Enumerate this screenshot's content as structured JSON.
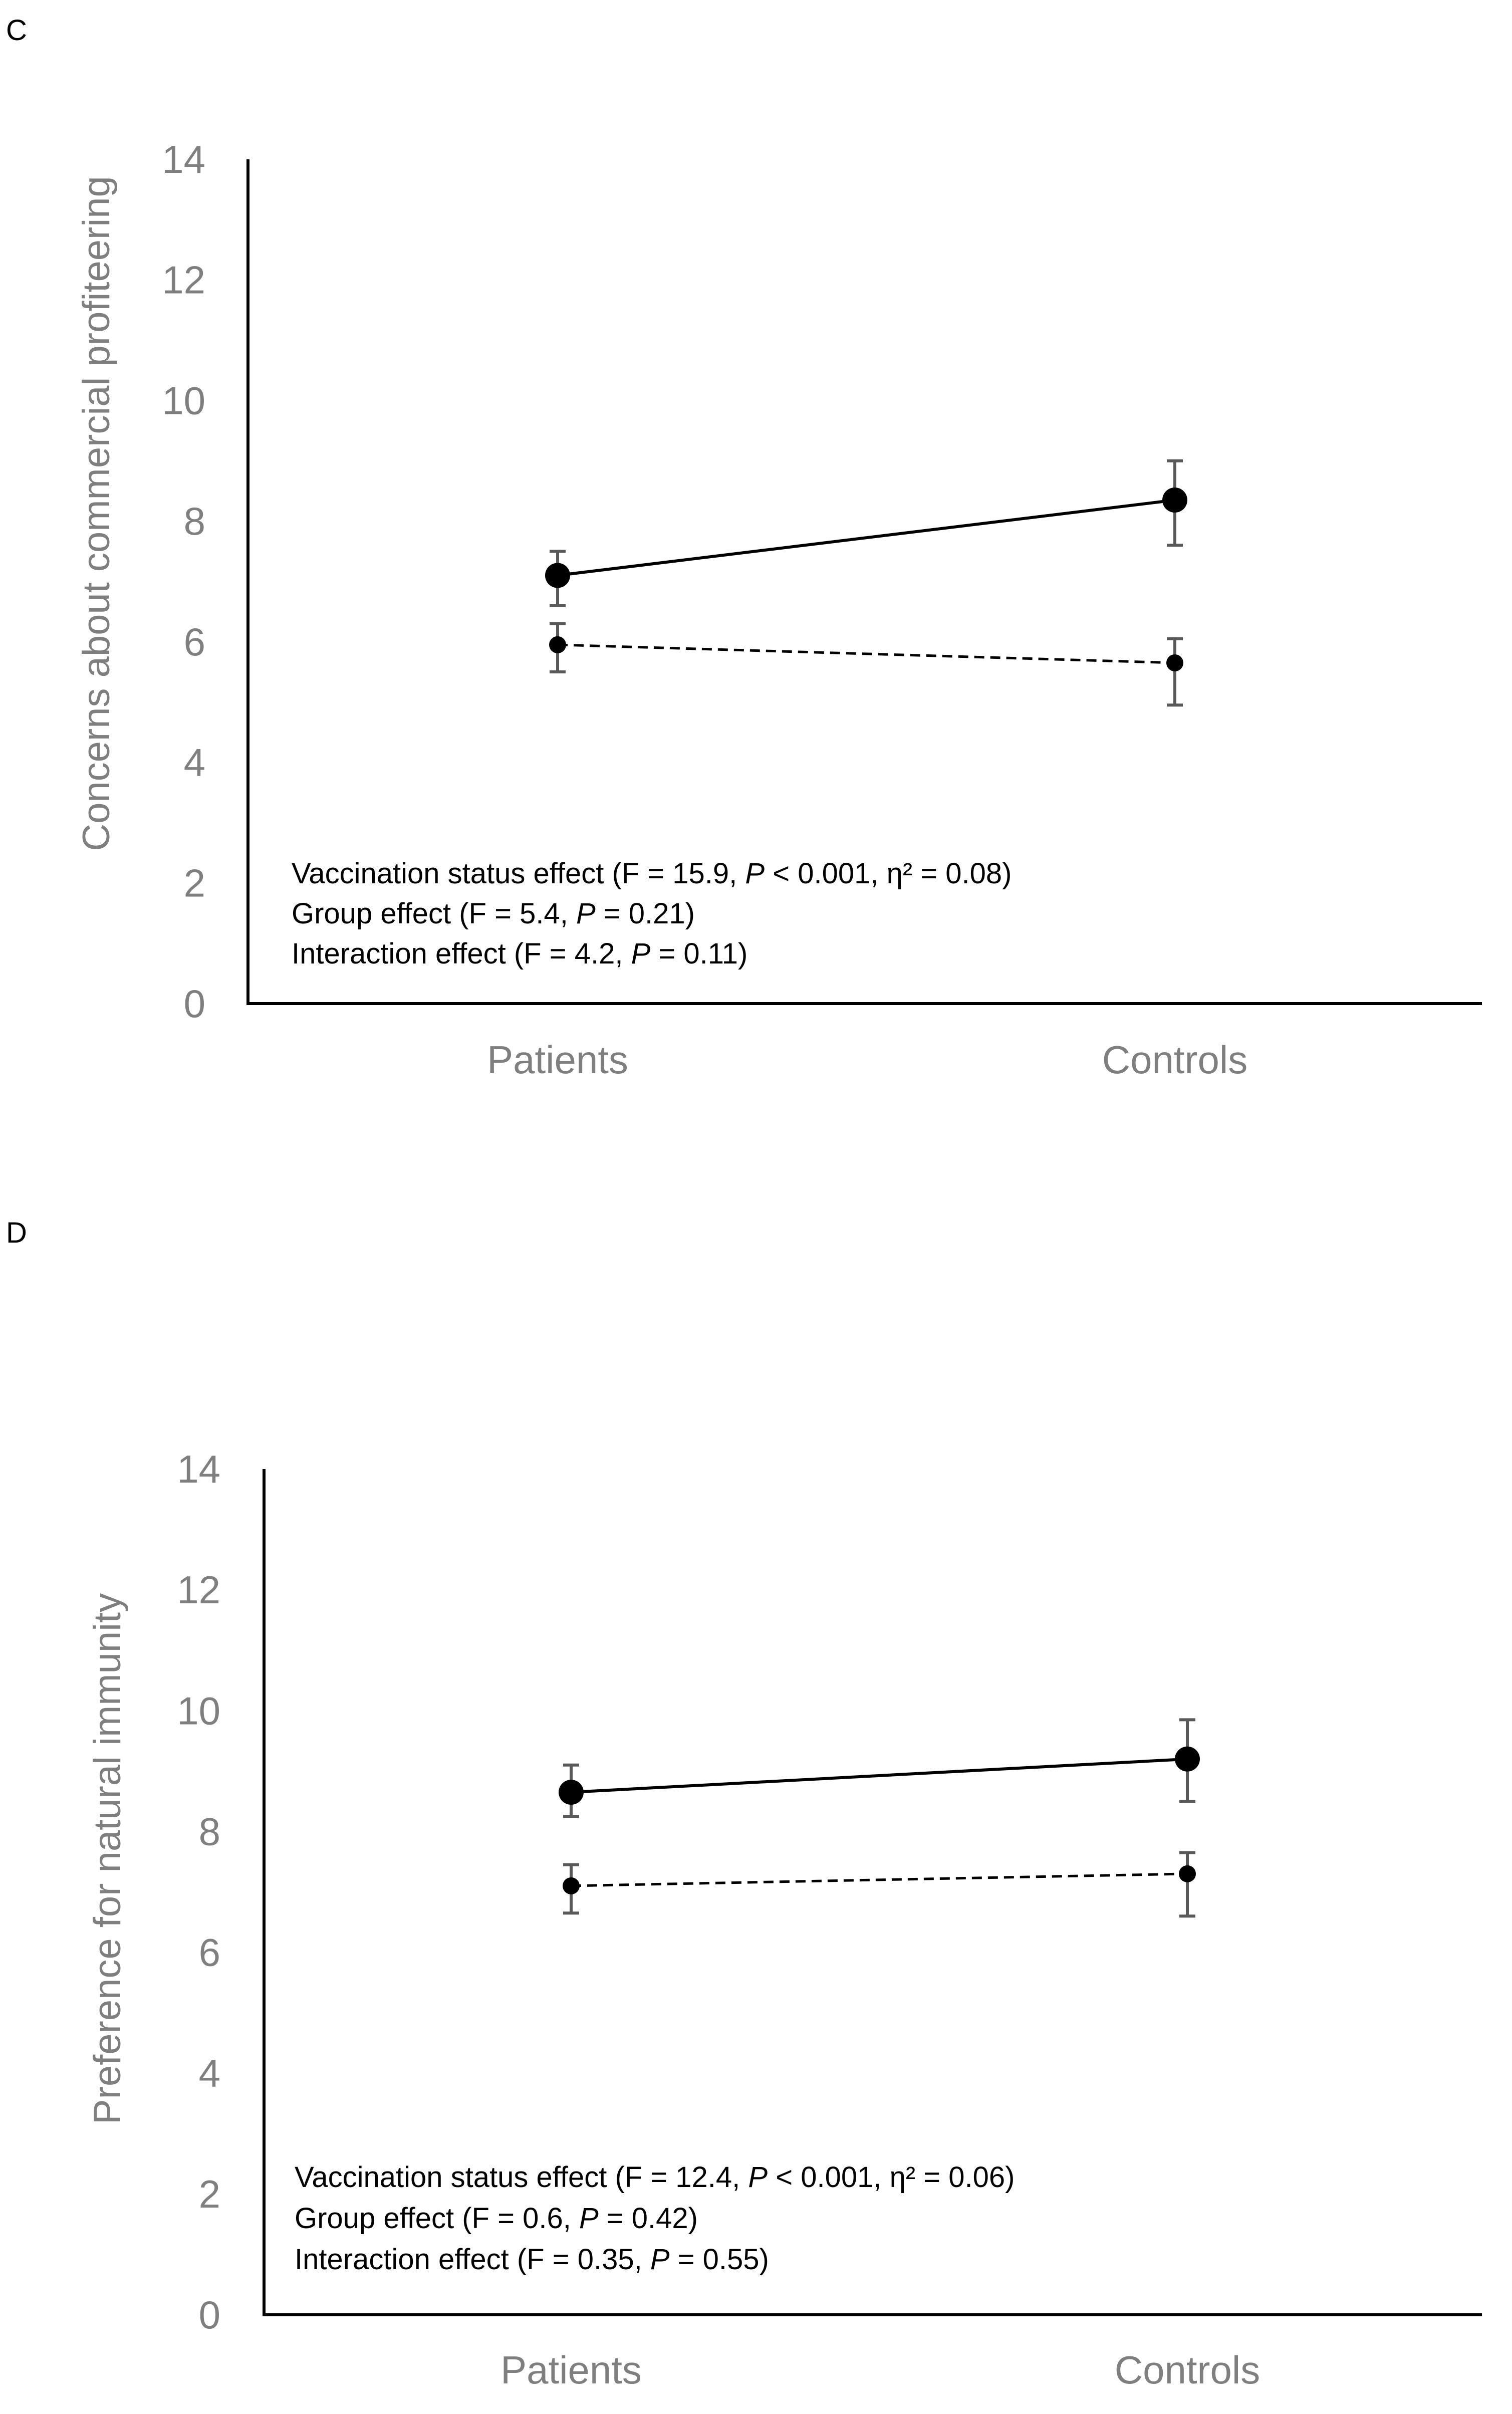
{
  "figure": {
    "colors": {
      "axis": "#000000",
      "line": "#000000",
      "error_bar": "#595959",
      "tick_text": "#7f7f7f",
      "annotation_text": "#000000"
    }
  },
  "chart_data": [
    {
      "panel": "C",
      "type": "line",
      "ylabel": "Concerns about commercial profiteering",
      "xlabel": "",
      "ylim": [
        0,
        14
      ],
      "yticks": [
        0,
        2,
        4,
        6,
        8,
        10,
        12,
        14
      ],
      "categories": [
        "Patients",
        "Controls"
      ],
      "series": [
        {
          "name": "solid",
          "line_style": "solid",
          "marker": "large",
          "values": [
            7.1,
            8.35
          ],
          "err_low": [
            6.6,
            7.6
          ],
          "err_high": [
            7.5,
            9.0
          ]
        },
        {
          "name": "dashed",
          "line_style": "dashed",
          "marker": "small",
          "values": [
            5.95,
            5.65
          ],
          "err_low": [
            5.5,
            4.95
          ],
          "err_high": [
            6.3,
            6.05
          ]
        }
      ],
      "annotations": [
        {
          "prefix": "Vaccination status effect (F = 15.9, ",
          "p": "P",
          "suffix": " < 0.001, η² = 0.08)"
        },
        {
          "prefix": "Group effect (F = 5.4, ",
          "p": "P",
          "suffix": " = 0.21)"
        },
        {
          "prefix": "Interaction effect (F = 4.2, ",
          "p": "P",
          "suffix": " = 0.11)"
        }
      ]
    },
    {
      "panel": "D",
      "type": "line",
      "ylabel": "Preference for natural immunity",
      "xlabel": "",
      "ylim": [
        0,
        14
      ],
      "yticks": [
        0,
        2,
        4,
        6,
        8,
        10,
        12,
        14
      ],
      "categories": [
        "Patients",
        "Controls"
      ],
      "series": [
        {
          "name": "solid",
          "line_style": "solid",
          "marker": "large",
          "values": [
            8.65,
            9.2
          ],
          "err_low": [
            8.25,
            8.5
          ],
          "err_high": [
            9.1,
            9.85
          ]
        },
        {
          "name": "dashed",
          "line_style": "dashed",
          "marker": "small",
          "values": [
            7.1,
            7.3
          ],
          "err_low": [
            6.65,
            6.6
          ],
          "err_high": [
            7.45,
            7.65
          ]
        }
      ],
      "annotations": [
        {
          "prefix": "Vaccination status effect (F = 12.4, ",
          "p": "P",
          "suffix": " < 0.001, η² = 0.06)"
        },
        {
          "prefix": "Group effect (F = 0.6, ",
          "p": "P",
          "suffix": " = 0.42)"
        },
        {
          "prefix": "Interaction effect  (F = 0.35, ",
          "p": "P",
          "suffix": " = 0.55)"
        }
      ]
    }
  ]
}
